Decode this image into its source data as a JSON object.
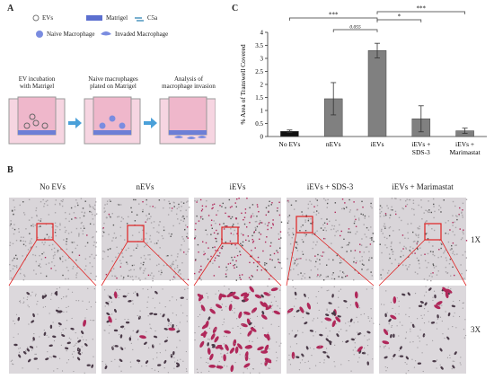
{
  "panel_labels": {
    "a": "A",
    "b": "B",
    "c": "C"
  },
  "legend": {
    "evs": "EVs",
    "matrigel": "Matrigel",
    "c5a": "C5a",
    "naive": "Naive Macrophage",
    "invaded": "Invaded Macrophage"
  },
  "steps": [
    "EV incubation\nwith Matrigel",
    "Naive macrophages\nplated on Matrigel",
    "Analysis of\nmacrophage invasion"
  ],
  "columns": [
    "No EVs",
    "nEVs",
    "iEVs",
    "iEVs + SDS-3",
    "iEVs + Marimastat"
  ],
  "magnifications": [
    "1X",
    "3X"
  ],
  "colors": {
    "bar": "#808080",
    "noevs_bar": "#111111",
    "stain": "#b0285a",
    "box": "#e02020"
  },
  "chart_data": {
    "type": "bar",
    "categories": [
      "No EVs",
      "nEVs",
      "iEVs",
      "iEVs +\nSDS-3",
      "iEVs +\nMarimastat"
    ],
    "values": [
      0.2,
      1.45,
      3.3,
      0.68,
      0.22
    ],
    "errors": [
      0.05,
      0.62,
      0.28,
      0.5,
      0.1
    ],
    "ylabel": "% Area of Transwell Covered",
    "ylim": [
      0,
      4
    ],
    "yticks": [
      "0",
      "0.5",
      "1",
      "1.5",
      "2",
      "2.5",
      "3",
      "3.5",
      "4"
    ],
    "annotations": [
      {
        "from": 0,
        "to": 2,
        "label": "***"
      },
      {
        "from": 1,
        "to": 2,
        "label": "0.055"
      },
      {
        "from": 2,
        "to": 3,
        "label": "*"
      },
      {
        "from": 2,
        "to": 4,
        "label": "***"
      }
    ]
  }
}
